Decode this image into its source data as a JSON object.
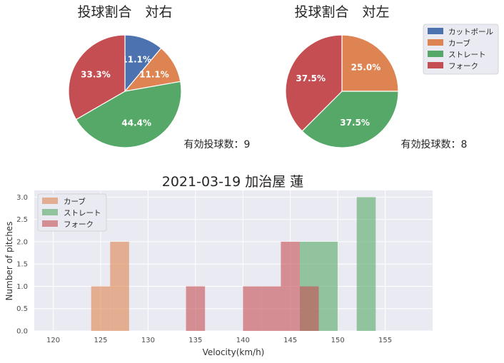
{
  "colors": {
    "cutball": "#4c72b0",
    "curve": "#dd8452",
    "straight": "#55a868",
    "fork": "#c44e52",
    "plot_bg": "#eaeaf2",
    "grid": "#ffffff"
  },
  "chart_data": [
    {
      "type": "pie",
      "title": "投球割合　対右",
      "labels": [
        "カットボール",
        "カーブ",
        "ストレート",
        "フォーク"
      ],
      "values": [
        11.1,
        11.1,
        44.4,
        33.3
      ],
      "pct_labels": [
        "11.1%",
        "11.1%",
        "44.4%",
        "33.3%"
      ],
      "note": "有効投球数：9"
    },
    {
      "type": "pie",
      "title": "投球割合　対左",
      "labels": [
        "カットボール",
        "カーブ",
        "ストレート",
        "フォーク"
      ],
      "values": [
        0.0,
        25.0,
        37.5,
        37.5
      ],
      "pct_labels": [
        "0.0%",
        "25.0%",
        "37.5%",
        "37.5%"
      ],
      "note": "有効投球数：8",
      "legend": [
        "カットボール",
        "カーブ",
        "ストレート",
        "フォーク"
      ],
      "legend_position": "outside-right"
    },
    {
      "type": "bar",
      "title": "2021-03-19 加治屋 蓮",
      "xlabel": "Velocity(km/h)",
      "ylabel": "Number of pitches",
      "xlim": [
        118,
        160
      ],
      "ylim": [
        0,
        3.15
      ],
      "xticks": [
        "120",
        "125",
        "130",
        "135",
        "140",
        "145",
        "150",
        "155"
      ],
      "yticks": [
        "0.0",
        "0.5",
        "1.0",
        "1.5",
        "2.0",
        "2.5",
        "3.0"
      ],
      "bin_width": 2,
      "legend": [
        "カーブ",
        "ストレート",
        "フォーク"
      ],
      "legend_position": "upper-left",
      "series": [
        {
          "name": "カーブ",
          "bins": [
            [
              124,
              1
            ],
            [
              126,
              2
            ]
          ]
        },
        {
          "name": "ストレート",
          "bins": [
            [
              146,
              2
            ],
            [
              148,
              2
            ],
            [
              152,
              3
            ]
          ]
        },
        {
          "name": "フォーク",
          "bins": [
            [
              134,
              1
            ],
            [
              140,
              1
            ],
            [
              142,
              1
            ],
            [
              144,
              2
            ],
            [
              146,
              1
            ]
          ]
        }
      ]
    }
  ]
}
